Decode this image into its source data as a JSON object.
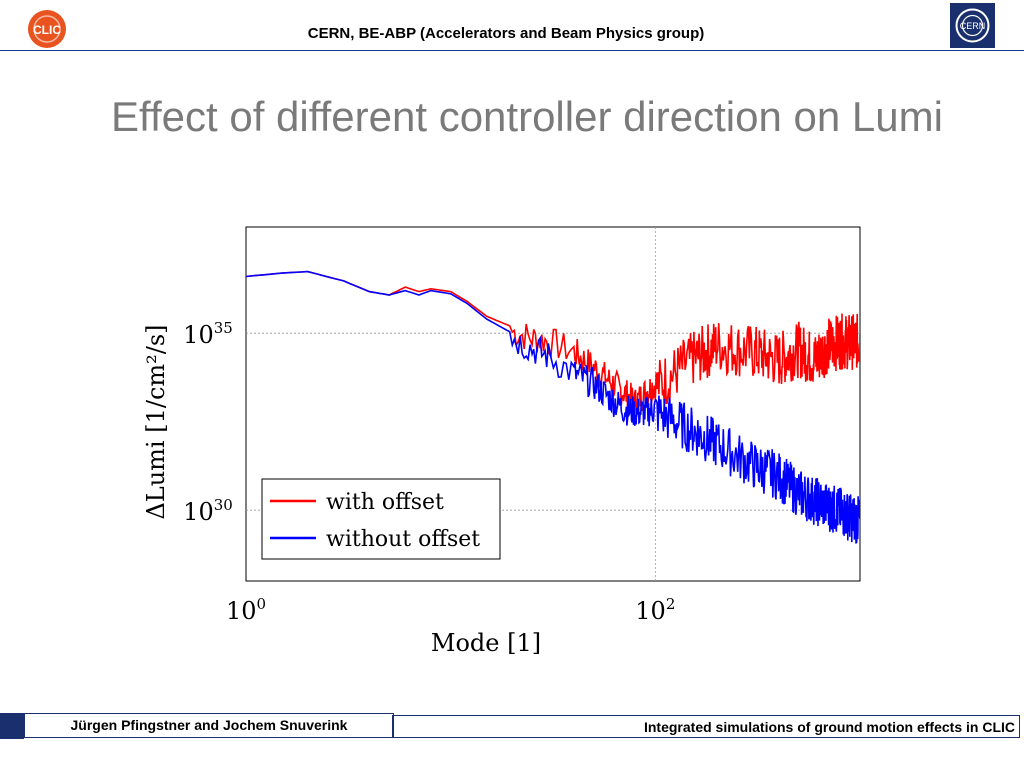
{
  "header": {
    "organization": "CERN, BE-ABP (Accelerators and Beam Physics group)",
    "clic_logo_text": "CLIC",
    "cern_logo_text": "CERN"
  },
  "slide": {
    "title": "Effect of different controller direction on Lumi"
  },
  "footer": {
    "authors": "Jürgen Pfingstner and Jochem Snuverink",
    "talk_title": "Integrated simulations of ground motion effects in CLIC"
  },
  "colors": {
    "with_offset": "#ff0000",
    "without_offset": "#0000ff",
    "brand_blue": "#1a2f6e",
    "clic_orange": "#e8531f"
  },
  "chart_data": {
    "type": "line",
    "x_scale": "log",
    "y_scale": "log",
    "xlim": [
      1,
      1000
    ],
    "ylim": [
      1e+28,
      1e+38
    ],
    "grid": "dotted",
    "xlabel": "Mode [1]",
    "ylabel": "ΔLumi [1/cm²/s]",
    "xticks": [
      {
        "value": 1,
        "base": "10",
        "exp": "0"
      },
      {
        "value": 100,
        "base": "10",
        "exp": "2"
      }
    ],
    "yticks": [
      {
        "value": 1e+30,
        "base": "10",
        "exp": "30"
      },
      {
        "value": 1e+35,
        "base": "10",
        "exp": "35"
      }
    ],
    "legend_position": "bottom-left",
    "series": [
      {
        "name": "with offset",
        "color": "#ff0000",
        "x": [
          1,
          1.5,
          2,
          3,
          4,
          5,
          6,
          7,
          8,
          10,
          12,
          15,
          20,
          25,
          30,
          40,
          50,
          60,
          70,
          80,
          90,
          100,
          150,
          200,
          300,
          400,
          500,
          600,
          700,
          800,
          900,
          1000
        ],
        "y": [
          4e+36,
          5e+36,
          5.5e+36,
          3e+36,
          1.5e+36,
          1.2e+36,
          2e+36,
          1.5e+36,
          1.8e+36,
          1.5e+36,
          8e+35,
          3e+35,
          1.5e+35,
          1e+35,
          8e+34,
          4e+34,
          1.5e+34,
          6e+33,
          3e+33,
          1.5e+33,
          3e+33,
          5e+33,
          3e+34,
          8e+34,
          5e+34,
          3e+34,
          6e+34,
          3e+34,
          8e+34,
          1e+35,
          1e+35,
          1e+35
        ]
      },
      {
        "name": "without offset",
        "color": "#0000ff",
        "x": [
          1,
          1.5,
          2,
          3,
          4,
          5,
          6,
          7,
          8,
          10,
          12,
          15,
          20,
          25,
          30,
          40,
          50,
          60,
          70,
          80,
          90,
          100,
          150,
          200,
          300,
          400,
          500,
          600,
          700,
          800,
          900,
          1000
        ],
        "y": [
          4e+36,
          5e+36,
          5.5e+36,
          3e+36,
          1.5e+36,
          1.2e+36,
          1.6e+36,
          1.2e+36,
          1.6e+36,
          1.3e+36,
          7e+35,
          2.5e+35,
          1e+35,
          5e+34,
          3e+34,
          1e+34,
          5e+33,
          2e+33,
          1e+33,
          8e+32,
          8e+32,
          1e+33,
          3e+32,
          1.2e+32,
          3e+31,
          1.5e+31,
          5e+30,
          3e+30,
          2e+30,
          1.5e+30,
          1e+30,
          8e+29
        ]
      }
    ]
  }
}
